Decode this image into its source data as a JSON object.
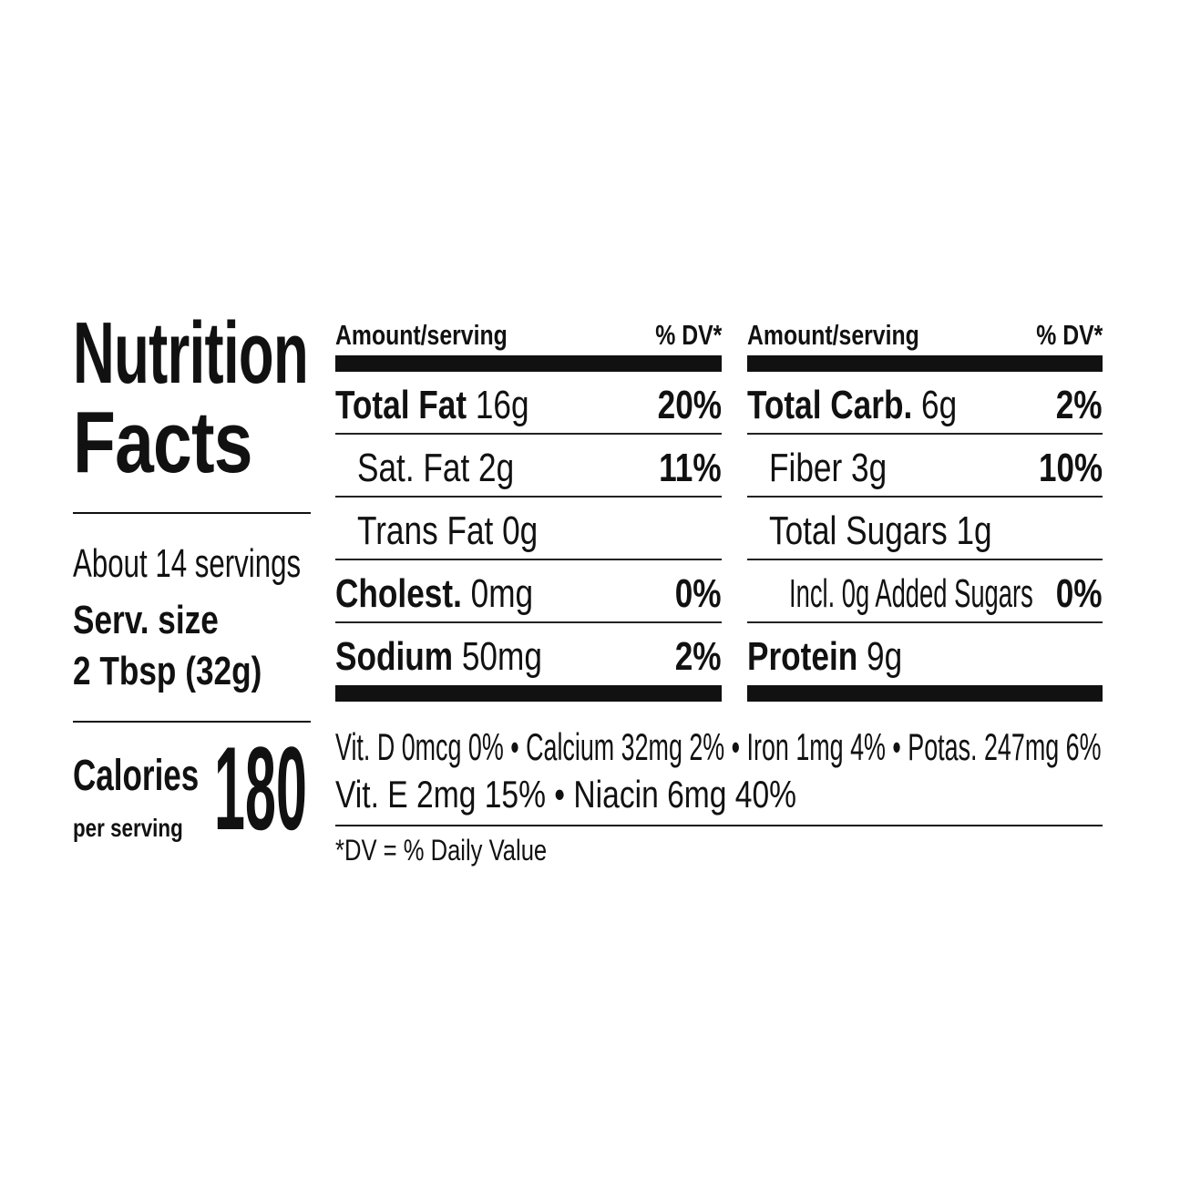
{
  "title": {
    "line1": "Nutrition",
    "line2": "Facts"
  },
  "servings": {
    "per_container": "About 14 servings",
    "size_label": "Serv. size",
    "size_value": "2 Tbsp (32g)"
  },
  "calories": {
    "label": "Calories",
    "sublabel": "per serving",
    "value": "180"
  },
  "left_table": {
    "header_amount": "Amount/serving",
    "header_dv": "% DV*",
    "rows": [
      {
        "name": "Total Fat",
        "amount": "16g",
        "dv": "20%"
      },
      {
        "name": "Sat. Fat",
        "amount": "2g",
        "dv": "11%"
      },
      {
        "name": "Trans Fat",
        "amount": "0g",
        "dv": ""
      },
      {
        "name": "Cholest.",
        "amount": "0mg",
        "dv": "0%"
      },
      {
        "name": "Sodium",
        "amount": "50mg",
        "dv": "2%"
      }
    ]
  },
  "right_table": {
    "header_amount": "Amount/serving",
    "header_dv": "% DV*",
    "rows": [
      {
        "name": "Total Carb.",
        "amount": "6g",
        "dv": "2%"
      },
      {
        "name": "Fiber",
        "amount": "3g",
        "dv": "10%"
      },
      {
        "name": "Total Sugars",
        "amount": "1g",
        "dv": ""
      },
      {
        "name": "Incl. 0g Added Sugars",
        "amount": "",
        "dv": "0%"
      },
      {
        "name": "Protein",
        "amount": "9g",
        "dv": ""
      }
    ]
  },
  "micronutrients": {
    "line1": "Vit. D 0mcg 0% • Calcium 32mg 2% • Iron 1mg 4% • Potas. 247mg 6%",
    "line2": "Vit. E 2mg 15% • Niacin 6mg 40%"
  },
  "footnote": "*DV = % Daily Value"
}
